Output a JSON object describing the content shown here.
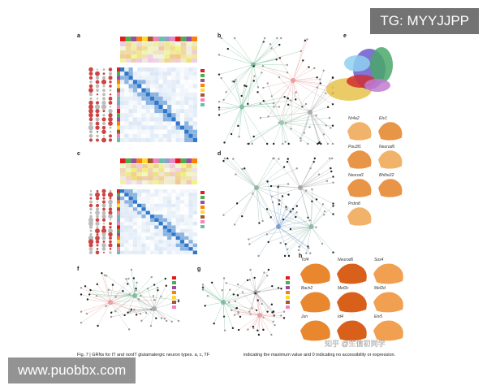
{
  "figure": {
    "panel_letters": [
      "a",
      "b",
      "c",
      "d",
      "e",
      "f",
      "g",
      "h"
    ],
    "caption_left": "Fig. 7 | GRNs for IT and nonIT glutamatergic neuron types. a, c, TF",
    "caption_right": "indicating the maximum value and 0 indicating no accessibility or expression.",
    "e_genes": [
      "Nr4a2",
      "Etv1",
      "Pou3f1",
      "Neurod6",
      "Neurod1",
      "Bhlhe22",
      "Prdm8"
    ],
    "h_genes": [
      "Tcf4",
      "Neurod6",
      "Sox4",
      "Bach2",
      "Mef2c",
      "Mef2d",
      "Jun",
      "Id4",
      "Etv5"
    ]
  },
  "watermarks": {
    "top": "TG: MYYJJPP",
    "center": "知乎 @生信初同学",
    "bottom": "www.puobbx.com"
  }
}
